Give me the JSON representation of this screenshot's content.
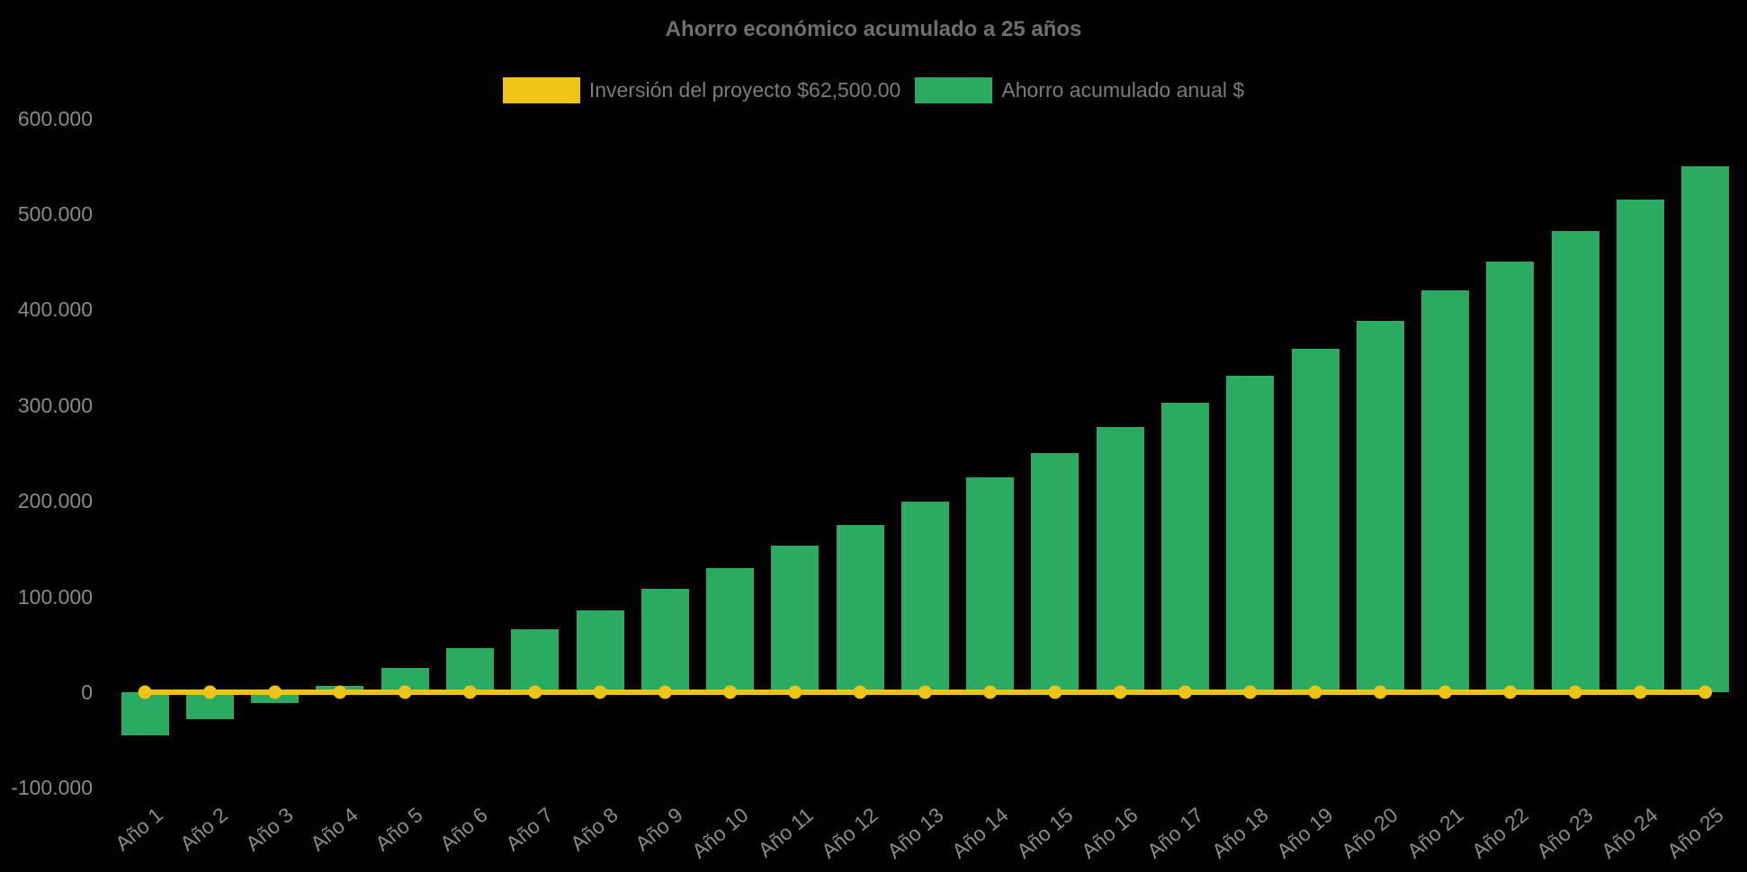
{
  "chart_data": {
    "type": "bar",
    "title": "Ahorro económico acumulado a 25 años",
    "background": "#000000",
    "text_colors": {
      "title": "#6f6f6f",
      "legend": "#7b7b7b",
      "ticks": "#8a8a8a"
    },
    "legend_position": "top",
    "grid": false,
    "x_tick_rotation_deg": -40,
    "categories": [
      "Año 1",
      "Año 2",
      "Año 3",
      "Año 4",
      "Año 5",
      "Año 6",
      "Año 7",
      "Año 8",
      "Año 9",
      "Año 10",
      "Año 11",
      "Año 12",
      "Año 13",
      "Año 14",
      "Año 15",
      "Año 16",
      "Año 17",
      "Año 18",
      "Año 19",
      "Año 20",
      "Año 21",
      "Año 22",
      "Año 23",
      "Año 24",
      "Año 25"
    ],
    "series": [
      {
        "name": "Inversión del proyecto $62,500.00",
        "type": "line",
        "color": "#f0c414",
        "values": [
          0,
          0,
          0,
          0,
          0,
          0,
          0,
          0,
          0,
          0,
          0,
          0,
          0,
          0,
          0,
          0,
          0,
          0,
          0,
          0,
          0,
          0,
          0,
          0,
          0
        ]
      },
      {
        "name": "Ahorro acumulado anual $",
        "type": "bar",
        "color": "#2bab62",
        "values": [
          -45000,
          -28000,
          -11000,
          7000,
          25000,
          46000,
          66000,
          86000,
          108000,
          130000,
          153000,
          175000,
          199000,
          225000,
          250000,
          277000,
          303000,
          331000,
          359000,
          388000,
          420000,
          450000,
          482000,
          515000,
          550000
        ]
      }
    ],
    "ylabel": "",
    "xlabel": "",
    "ylim": [
      -100000,
      600000
    ],
    "yticks": [
      {
        "label": "600.000",
        "value": 600000
      },
      {
        "label": "500.000",
        "value": 500000
      },
      {
        "label": "400.000",
        "value": 400000
      },
      {
        "label": "300.000",
        "value": 300000
      },
      {
        "label": "200.000",
        "value": 200000
      },
      {
        "label": "100.000",
        "value": 100000
      },
      {
        "label": "0",
        "value": 0
      },
      {
        "label": "-100.000",
        "value": -100000
      }
    ]
  }
}
